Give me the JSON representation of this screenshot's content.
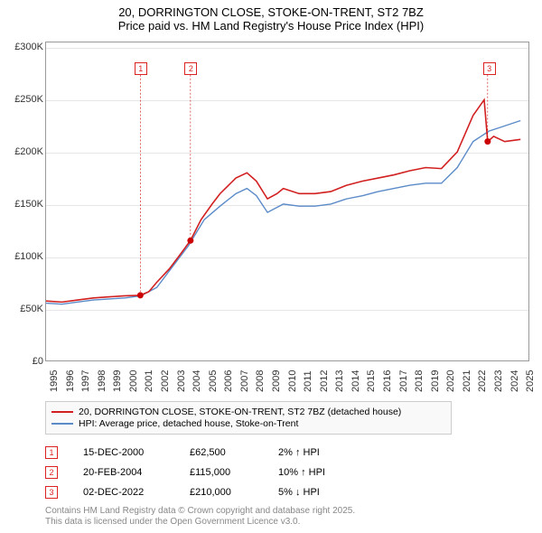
{
  "title_line1": "20, DORRINGTON CLOSE, STOKE-ON-TRENT, ST2 7BZ",
  "title_line2": "Price paid vs. HM Land Registry's House Price Index (HPI)",
  "chart": {
    "type": "line",
    "background_color": "#ffffff",
    "grid_color": "#e6e6e6",
    "border_color": "#999999",
    "x_min": 1995,
    "x_max": 2025.5,
    "y_min": 0,
    "y_max": 305000,
    "y_ticks": [
      0,
      50000,
      100000,
      150000,
      200000,
      250000,
      300000
    ],
    "y_tick_labels": [
      "£0",
      "£50,000K",
      "£100,000K",
      "£150,000K",
      "£200,000K",
      "£250,000K",
      "£300,000K"
    ],
    "y_tick_labels_short": [
      "£0",
      "£50K",
      "£100K",
      "£150K",
      "£200K",
      "£250K",
      "£300K"
    ],
    "x_ticks": [
      1995,
      1996,
      1997,
      1998,
      1999,
      2000,
      2001,
      2002,
      2003,
      2004,
      2005,
      2006,
      2007,
      2008,
      2009,
      2010,
      2011,
      2012,
      2013,
      2014,
      2015,
      2016,
      2017,
      2018,
      2019,
      2020,
      2021,
      2022,
      2023,
      2024,
      2025
    ],
    "axis_fontsize": 11,
    "series": [
      {
        "name": "20, DORRINGTON CLOSE, STOKE-ON-TRENT, ST2 7BZ (detached house)",
        "color": "#d22020",
        "line_width": 1.6,
        "data": [
          [
            1995,
            57000
          ],
          [
            1996,
            56000
          ],
          [
            1997,
            58000
          ],
          [
            1998,
            60000
          ],
          [
            1999,
            61000
          ],
          [
            2000,
            62000
          ],
          [
            2000.96,
            62500
          ],
          [
            2001.5,
            66000
          ],
          [
            2002,
            75000
          ],
          [
            2002.8,
            88000
          ],
          [
            2003.5,
            102000
          ],
          [
            2004.13,
            115000
          ],
          [
            2004.8,
            135000
          ],
          [
            2005.5,
            150000
          ],
          [
            2006,
            160000
          ],
          [
            2007,
            175000
          ],
          [
            2007.7,
            180000
          ],
          [
            2008.3,
            172000
          ],
          [
            2009,
            155000
          ],
          [
            2009.6,
            160000
          ],
          [
            2010,
            165000
          ],
          [
            2011,
            160000
          ],
          [
            2012,
            160000
          ],
          [
            2013,
            162000
          ],
          [
            2014,
            168000
          ],
          [
            2015,
            172000
          ],
          [
            2016,
            175000
          ],
          [
            2017,
            178000
          ],
          [
            2018,
            182000
          ],
          [
            2019,
            185000
          ],
          [
            2020,
            184000
          ],
          [
            2021,
            200000
          ],
          [
            2022,
            235000
          ],
          [
            2022.7,
            250000
          ],
          [
            2022.92,
            210000
          ],
          [
            2023.3,
            215000
          ],
          [
            2024,
            210000
          ],
          [
            2025,
            212000
          ]
        ]
      },
      {
        "name": "HPI: Average price, detached house, Stoke-on-Trent",
        "color": "#5b8bc8",
        "line_width": 1.4,
        "data": [
          [
            1995,
            55000
          ],
          [
            1996,
            54000
          ],
          [
            1997,
            56000
          ],
          [
            1998,
            58000
          ],
          [
            1999,
            59000
          ],
          [
            2000,
            60000
          ],
          [
            2001,
            62000
          ],
          [
            2002,
            70000
          ],
          [
            2003,
            90000
          ],
          [
            2004,
            110000
          ],
          [
            2005,
            135000
          ],
          [
            2006,
            148000
          ],
          [
            2007,
            160000
          ],
          [
            2007.7,
            165000
          ],
          [
            2008.3,
            158000
          ],
          [
            2009,
            142000
          ],
          [
            2010,
            150000
          ],
          [
            2011,
            148000
          ],
          [
            2012,
            148000
          ],
          [
            2013,
            150000
          ],
          [
            2014,
            155000
          ],
          [
            2015,
            158000
          ],
          [
            2016,
            162000
          ],
          [
            2017,
            165000
          ],
          [
            2018,
            168000
          ],
          [
            2019,
            170000
          ],
          [
            2020,
            170000
          ],
          [
            2021,
            185000
          ],
          [
            2022,
            210000
          ],
          [
            2023,
            220000
          ],
          [
            2024,
            225000
          ],
          [
            2025,
            230000
          ]
        ]
      }
    ],
    "sale_markers": [
      {
        "n": "1",
        "x": 2000.96,
        "y": 62500,
        "box_y": 280000
      },
      {
        "n": "2",
        "x": 2004.13,
        "y": 115000,
        "box_y": 280000
      },
      {
        "n": "3",
        "x": 2022.92,
        "y": 210000,
        "box_y": 280000
      }
    ],
    "marker_color": "#cc0000",
    "dot_color": "#cc0000"
  },
  "legend": {
    "items": [
      {
        "color": "#d22020",
        "label": "20, DORRINGTON CLOSE, STOKE-ON-TRENT, ST2 7BZ (detached house)"
      },
      {
        "color": "#5b8bc8",
        "label": "HPI: Average price, detached house, Stoke-on-Trent"
      }
    ]
  },
  "sales": [
    {
      "n": "1",
      "date": "15-DEC-2000",
      "price": "£62,500",
      "delta": "2% ↑ HPI"
    },
    {
      "n": "2",
      "date": "20-FEB-2004",
      "price": "£115,000",
      "delta": "10% ↑ HPI"
    },
    {
      "n": "3",
      "date": "02-DEC-2022",
      "price": "£210,000",
      "delta": "5% ↓ HPI"
    }
  ],
  "footnote_line1": "Contains HM Land Registry data © Crown copyright and database right 2025.",
  "footnote_line2": "This data is licensed under the Open Government Licence v3.0."
}
